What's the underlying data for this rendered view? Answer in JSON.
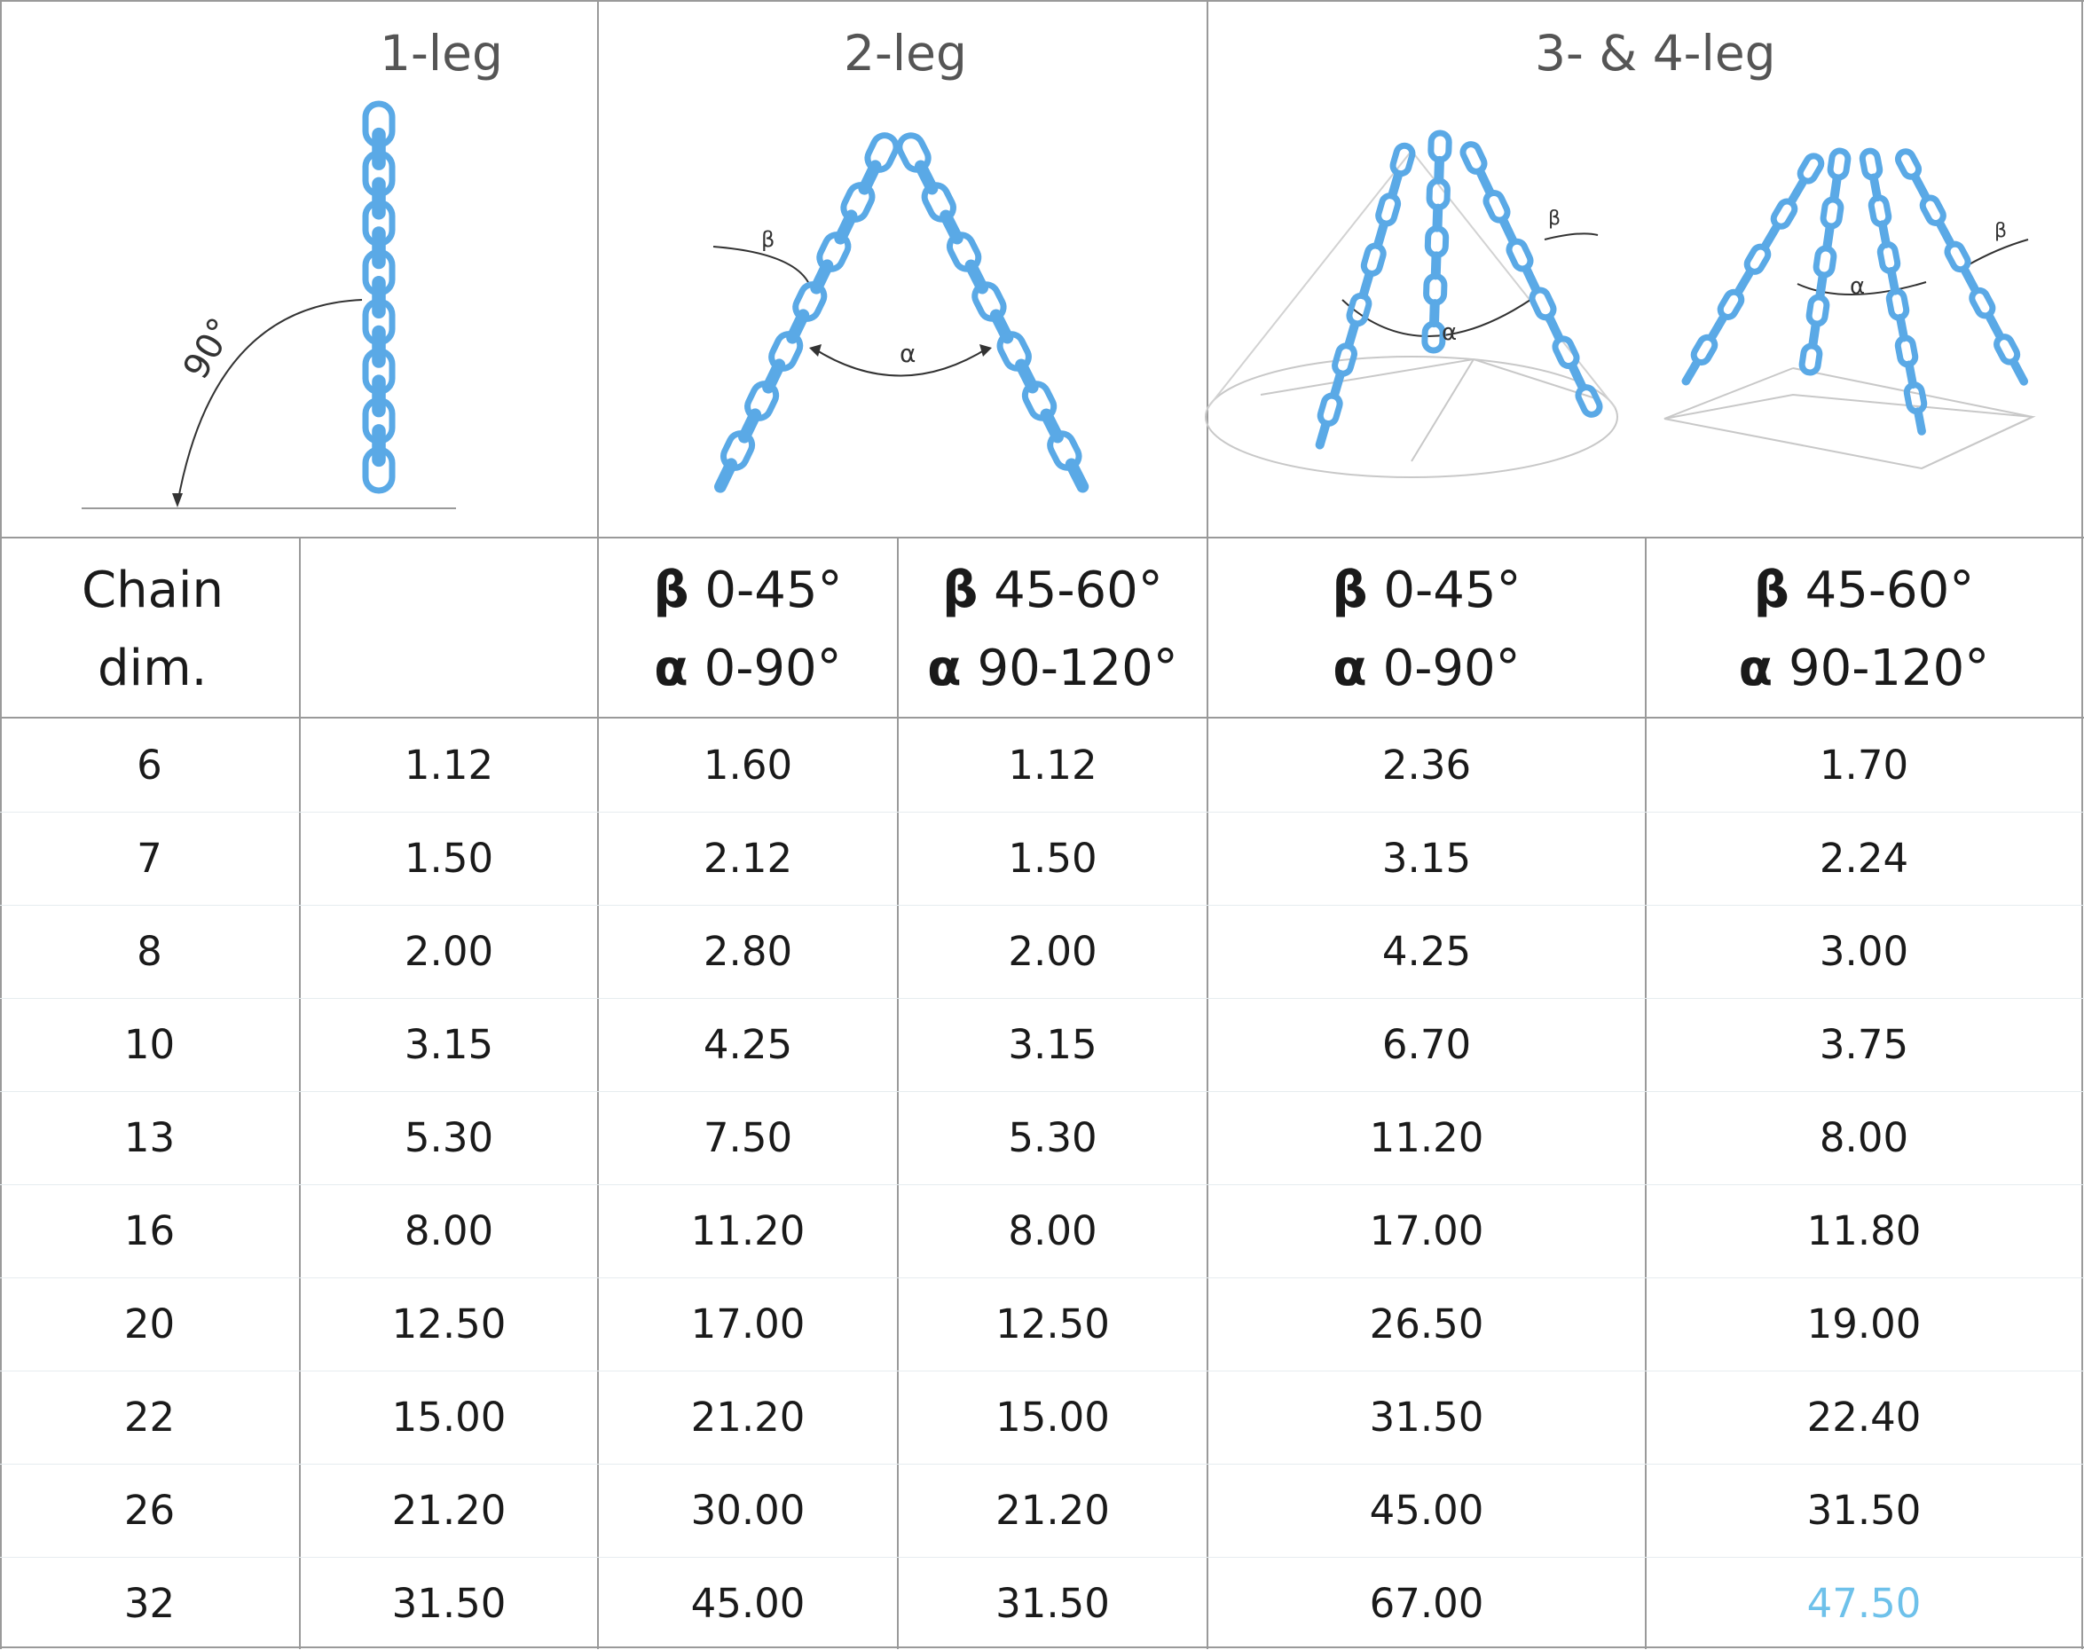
{
  "groups": [
    {
      "title": "1-leg",
      "angle_label": "90°"
    },
    {
      "title": "2-leg",
      "beta": "β",
      "alpha": "α"
    },
    {
      "title": "3- & 4-leg",
      "beta": "β",
      "alpha": "α"
    }
  ],
  "columns": [
    {
      "line1": "Chain",
      "line2": "dim."
    },
    {
      "line1": "",
      "line2": ""
    },
    {
      "sym1": "β",
      "line1": " 0-45°",
      "sym2": "α",
      "line2": " 0-90°"
    },
    {
      "sym1": "β",
      "line1": " 45-60°",
      "sym2": "α",
      "line2": " 90-120°"
    },
    {
      "sym1": "β",
      "line1": " 0-45°",
      "sym2": "α",
      "line2": " 0-90°"
    },
    {
      "sym1": "β",
      "line1": " 45-60°",
      "sym2": "α",
      "line2": " 90-120°"
    }
  ],
  "rows": [
    [
      "6",
      "1.12",
      "1.60",
      "1.12",
      "2.36",
      "1.70"
    ],
    [
      "7",
      "1.50",
      "2.12",
      "1.50",
      "3.15",
      "2.24"
    ],
    [
      "8",
      "2.00",
      "2.80",
      "2.00",
      "4.25",
      "3.00"
    ],
    [
      "10",
      "3.15",
      "4.25",
      "3.15",
      "6.70",
      "3.75"
    ],
    [
      "13",
      "5.30",
      "7.50",
      "5.30",
      "11.20",
      "8.00"
    ],
    [
      "16",
      "8.00",
      "11.20",
      "8.00",
      "17.00",
      "11.80"
    ],
    [
      "20",
      "12.50",
      "17.00",
      "12.50",
      "26.50",
      "19.00"
    ],
    [
      "22",
      "15.00",
      "21.20",
      "15.00",
      "31.50",
      "22.40"
    ],
    [
      "26",
      "21.20",
      "30.00",
      "21.20",
      "45.00",
      "31.50"
    ],
    [
      "32",
      "31.50",
      "45.00",
      "31.50",
      "67.00",
      "47.50"
    ]
  ],
  "colors": {
    "chain": "#5aa9e6",
    "grid": "#9a9a9a",
    "highlight_value": "#6ec1ea",
    "text": "#1a1a1a"
  }
}
